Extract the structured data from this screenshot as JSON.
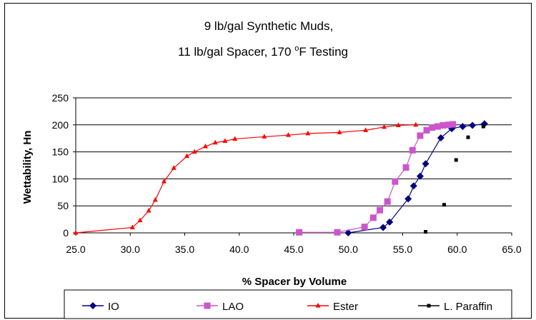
{
  "chart_data": {
    "type": "scatter",
    "title_line1": "9 lb/gal Synthetic Muds,",
    "title_line2_pre": "11 lb/gal Spacer, 170 ",
    "title_line2_deg": "o",
    "title_line2_post": "F Testing",
    "xlabel": "% Spacer by Volume",
    "ylabel": "Wettability, Hn",
    "xlim": [
      25,
      65
    ],
    "ylim": [
      0,
      250
    ],
    "x_ticks": [
      "25.0",
      "30.0",
      "35.0",
      "40.0",
      "45.0",
      "50.0",
      "55.0",
      "60.0",
      "65.0"
    ],
    "y_ticks": [
      "0",
      "50",
      "100",
      "150",
      "200",
      "250"
    ],
    "grid": "horizontal",
    "legend_position": "bottom",
    "series": [
      {
        "name": "IO",
        "color": "#000080",
        "marker": "diamond",
        "line": true,
        "points": [
          [
            50,
            0
          ],
          [
            53.2,
            10
          ],
          [
            53.8,
            20
          ],
          [
            55.5,
            63
          ],
          [
            56,
            87
          ],
          [
            56.6,
            105
          ],
          [
            57.1,
            128
          ],
          [
            58.5,
            176
          ],
          [
            59.5,
            193
          ],
          [
            60.5,
            197
          ],
          [
            61.4,
            199
          ],
          [
            62.5,
            202
          ]
        ]
      },
      {
        "name": "LAO",
        "color": "#CC55CC",
        "marker": "square",
        "line": true,
        "points": [
          [
            45.5,
            1
          ],
          [
            49,
            1
          ],
          [
            51.5,
            11
          ],
          [
            52.3,
            28
          ],
          [
            52.9,
            42
          ],
          [
            53.6,
            58
          ],
          [
            54.3,
            95
          ],
          [
            55.3,
            121
          ],
          [
            55.9,
            153
          ],
          [
            56.6,
            180
          ],
          [
            57.2,
            190
          ],
          [
            57.7,
            195
          ],
          [
            58.2,
            197
          ],
          [
            58.7,
            199
          ],
          [
            59.2,
            200
          ],
          [
            59.6,
            201
          ]
        ]
      },
      {
        "name": "Ester",
        "color": "#FF0000",
        "marker": "triangle",
        "line": true,
        "points": [
          [
            25,
            0
          ],
          [
            30.2,
            10
          ],
          [
            30.9,
            23
          ],
          [
            31.7,
            41
          ],
          [
            32.3,
            61
          ],
          [
            33.1,
            95
          ],
          [
            34,
            120
          ],
          [
            35.2,
            142
          ],
          [
            35.9,
            150
          ],
          [
            36.9,
            160
          ],
          [
            37.8,
            167
          ],
          [
            38.7,
            170
          ],
          [
            39.6,
            174
          ],
          [
            42.3,
            178
          ],
          [
            44.5,
            181
          ],
          [
            46.3,
            184
          ],
          [
            49.2,
            186
          ],
          [
            51.6,
            190
          ],
          [
            53.3,
            196
          ],
          [
            54.6,
            199
          ],
          [
            56.2,
            200
          ]
        ]
      },
      {
        "name": "L. Paraffin",
        "color": "#000000",
        "marker": "small-square",
        "line": false,
        "points": [
          [
            57.1,
            2
          ],
          [
            58.8,
            52
          ],
          [
            59.9,
            135
          ],
          [
            61,
            177
          ],
          [
            62.4,
            197
          ]
        ]
      }
    ]
  }
}
